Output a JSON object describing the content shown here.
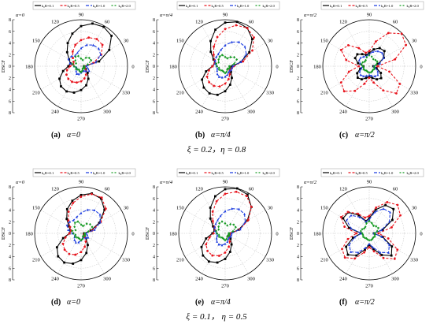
{
  "legend_labels": [
    "k₀R=0.1",
    "k₀R=0.5",
    "k₀R=1.0",
    "k₀R=2.0"
  ],
  "series_colors": [
    "#000000",
    "#e8141d",
    "#1f3fe0",
    "#159a22"
  ],
  "angle_labels": [
    "0",
    "30",
    "60",
    "90",
    "120",
    "150",
    "180",
    "210",
    "240",
    "270",
    "300",
    "330"
  ],
  "radial_tick_labels": [
    "0",
    "2",
    "4",
    "6",
    "8"
  ],
  "axis_label": "DSCF",
  "row_captions": [
    "ξ = 0.2，η = 0.8",
    "ξ = 0.1，  η = 0.5"
  ],
  "chart_data": [
    {
      "type": "polar-line",
      "panel": "(a)",
      "caption": "α=0",
      "alpha_label": "α=0",
      "theta_unit": "deg",
      "rlim": [
        0,
        8
      ],
      "legend": "top",
      "theta": [
        0,
        15,
        30,
        45,
        60,
        75,
        90,
        105,
        120,
        135,
        150,
        165,
        180,
        195,
        210,
        225,
        240,
        255,
        270,
        285,
        300,
        315,
        330,
        345
      ],
      "series": [
        {
          "name": "k₀R=0.1",
          "r": [
            0.5,
            3.2,
            5.6,
            7.4,
            7.8,
            7.6,
            6.9,
            5.8,
            4.6,
            3.4,
            2.4,
            1.9,
            2.2,
            3.2,
            4.3,
            4.9,
            5.0,
            4.7,
            4.1,
            3.4,
            2.5,
            1.6,
            0.9,
            0.5
          ]
        },
        {
          "name": "k₀R=0.5",
          "r": [
            0.6,
            2.2,
            4.0,
            5.2,
            5.4,
            5.1,
            4.5,
            3.8,
            2.9,
            2.0,
            1.5,
            1.4,
            1.9,
            2.5,
            2.9,
            3.1,
            3.1,
            2.9,
            2.6,
            2.2,
            1.7,
            1.2,
            0.8,
            0.6
          ]
        },
        {
          "name": "k₀R=1.0",
          "r": [
            0.9,
            2.6,
            3.9,
            4.3,
            4.2,
            3.8,
            3.1,
            2.4,
            2.1,
            2.4,
            2.5,
            2.0,
            1.2,
            0.8,
            0.9,
            1.2,
            1.5,
            1.4,
            1.1,
            0.9,
            0.9,
            1.2,
            1.6,
            1.2
          ]
        },
        {
          "name": "k₀R=2.0",
          "r": [
            0.5,
            1.2,
            2.0,
            2.0,
            1.7,
            1.1,
            1.3,
            1.8,
            1.9,
            1.4,
            1.0,
            1.5,
            1.2,
            0.9,
            1.0,
            0.8,
            0.7,
            0.9,
            1.0,
            0.8,
            0.5,
            0.5,
            0.7,
            0.6
          ]
        }
      ]
    },
    {
      "type": "polar-line",
      "panel": "(b)",
      "caption": "α=π/4",
      "alpha_label": "α=π/4",
      "theta_unit": "deg",
      "rlim": [
        0,
        8
      ],
      "legend": "top",
      "theta": [
        0,
        15,
        30,
        45,
        60,
        75,
        90,
        105,
        120,
        135,
        150,
        165,
        180,
        195,
        210,
        225,
        240,
        255,
        270,
        285,
        300,
        315,
        330,
        345
      ],
      "series": [
        {
          "name": "k₀R=0.1",
          "r": [
            1.2,
            2.8,
            4.8,
            6.6,
            7.6,
            7.9,
            7.5,
            6.5,
            5.0,
            3.5,
            2.3,
            1.8,
            2.2,
            3.4,
            4.6,
            5.2,
            5.4,
            5.1,
            4.3,
            3.3,
            2.3,
            1.4,
            0.9,
            0.9
          ]
        },
        {
          "name": "k₀R=0.5",
          "r": [
            1.5,
            3.2,
            5.4,
            7.0,
            7.6,
            7.3,
            6.4,
            5.2,
            3.9,
            2.8,
            2.1,
            1.9,
            2.2,
            2.9,
            3.6,
            3.9,
            3.9,
            3.6,
            3.0,
            2.3,
            1.6,
            1.1,
            1.0,
            1.2
          ]
        },
        {
          "name": "k₀R=1.0",
          "r": [
            1.3,
            2.8,
            4.2,
            4.8,
            4.8,
            4.3,
            3.6,
            2.9,
            2.4,
            2.2,
            2.0,
            1.8,
            1.5,
            1.4,
            1.6,
            1.9,
            2.1,
            2.0,
            1.8,
            1.5,
            1.2,
            1.1,
            1.2,
            1.2
          ]
        },
        {
          "name": "k₀R=2.0",
          "r": [
            0.7,
            1.6,
            2.3,
            2.2,
            1.8,
            1.4,
            1.6,
            2.0,
            1.9,
            1.6,
            1.3,
            1.6,
            1.4,
            1.1,
            1.2,
            1.0,
            0.9,
            1.0,
            1.2,
            1.0,
            0.7,
            0.6,
            0.8,
            0.8
          ]
        }
      ]
    },
    {
      "type": "polar-line",
      "panel": "(c)",
      "caption": "α=π/2",
      "alpha_label": "α=π/2",
      "theta_unit": "deg",
      "rlim": [
        0,
        8
      ],
      "legend": "top",
      "theta": [
        0,
        15,
        30,
        45,
        60,
        75,
        90,
        105,
        120,
        135,
        150,
        165,
        180,
        195,
        210,
        225,
        240,
        255,
        270,
        285,
        300,
        315,
        330,
        345
      ],
      "series": [
        {
          "name": "k₀R=0.1",
          "r": [
            0.7,
            1.6,
            2.9,
            3.7,
            3.6,
            3.0,
            2.3,
            2.0,
            2.4,
            2.9,
            2.8,
            2.0,
            1.0,
            1.6,
            2.4,
            2.8,
            2.6,
            2.1,
            1.8,
            2.1,
            2.6,
            2.9,
            2.3,
            1.3
          ]
        },
        {
          "name": "k₀R=0.5",
          "r": [
            1.4,
            4.6,
            7.3,
            7.9,
            6.6,
            4.4,
            2.6,
            2.4,
            3.6,
            5.1,
            5.6,
            4.1,
            1.8,
            3.6,
            5.6,
            6.1,
            4.9,
            3.1,
            2.0,
            2.9,
            4.8,
            6.6,
            6.1,
            3.6
          ]
        },
        {
          "name": "k₀R=1.0",
          "r": [
            0.8,
            1.9,
            2.9,
            3.2,
            3.0,
            2.6,
            2.1,
            1.8,
            1.9,
            2.1,
            2.0,
            1.6,
            1.1,
            1.4,
            1.9,
            2.1,
            2.0,
            1.7,
            1.5,
            1.7,
            2.0,
            2.1,
            1.7,
            1.1
          ]
        },
        {
          "name": "k₀R=2.0",
          "r": [
            0.9,
            1.3,
            1.6,
            1.5,
            1.4,
            1.7,
            1.9,
            1.6,
            1.2,
            1.1,
            1.3,
            1.4,
            1.1,
            1.0,
            1.1,
            1.0,
            0.9,
            1.0,
            1.1,
            1.1,
            1.0,
            0.9,
            1.0,
            0.9
          ]
        }
      ]
    },
    {
      "type": "polar-line",
      "panel": "(d)",
      "caption": "α=0",
      "alpha_label": "α=0",
      "theta_unit": "deg",
      "rlim": [
        0,
        8
      ],
      "legend": "top",
      "theta": [
        0,
        15,
        30,
        45,
        60,
        75,
        90,
        105,
        120,
        135,
        150,
        165,
        180,
        195,
        210,
        225,
        240,
        255,
        270,
        285,
        300,
        315,
        330,
        345
      ],
      "series": [
        {
          "name": "k₀R=0.1",
          "r": [
            0.5,
            1.7,
            3.6,
            5.7,
            6.9,
            7.1,
            6.6,
            5.8,
            4.8,
            3.5,
            2.4,
            1.9,
            2.0,
            3.2,
            4.8,
            5.6,
            5.8,
            5.4,
            4.6,
            3.5,
            2.3,
            1.2,
            0.6,
            0.5
          ]
        },
        {
          "name": "k₀R=0.5",
          "r": [
            0.6,
            2.0,
            3.9,
            6.0,
            7.1,
            7.0,
            6.3,
            5.4,
            4.3,
            3.1,
            2.2,
            1.8,
            2.0,
            2.8,
            3.6,
            4.0,
            4.1,
            3.8,
            3.2,
            2.4,
            1.6,
            0.9,
            0.6,
            0.6
          ]
        },
        {
          "name": "k₀R=1.0",
          "r": [
            0.8,
            2.4,
            3.8,
            4.6,
            4.6,
            4.2,
            3.5,
            2.9,
            2.6,
            2.8,
            2.8,
            2.3,
            1.5,
            1.1,
            1.3,
            1.6,
            1.8,
            1.6,
            1.2,
            0.9,
            0.8,
            1.1,
            1.4,
            1.1
          ]
        },
        {
          "name": "k₀R=2.0",
          "r": [
            0.6,
            1.3,
            2.2,
            2.2,
            1.9,
            1.3,
            1.5,
            2.1,
            2.1,
            1.6,
            1.1,
            1.6,
            1.3,
            1.0,
            1.2,
            1.0,
            0.9,
            1.0,
            1.2,
            1.0,
            0.6,
            0.6,
            0.8,
            0.7
          ]
        }
      ]
    },
    {
      "type": "polar-line",
      "panel": "(e)",
      "caption": "α=π/4",
      "alpha_label": "α=π/4",
      "theta_unit": "deg",
      "rlim": [
        0,
        8
      ],
      "legend": "top",
      "theta": [
        0,
        15,
        30,
        45,
        60,
        75,
        90,
        105,
        120,
        135,
        150,
        165,
        180,
        195,
        210,
        225,
        240,
        255,
        270,
        285,
        300,
        315,
        330,
        345
      ],
      "series": [
        {
          "name": "k₀R=0.1",
          "r": [
            0.9,
            2.4,
            4.4,
            6.4,
            7.7,
            8.0,
            7.6,
            6.6,
            5.1,
            3.6,
            2.4,
            1.9,
            2.2,
            3.4,
            4.7,
            5.4,
            5.6,
            5.2,
            4.4,
            3.3,
            2.2,
            1.3,
            0.8,
            0.7
          ]
        },
        {
          "name": "k₀R=0.5",
          "r": [
            1.0,
            2.6,
            4.6,
            6.4,
            7.4,
            7.4,
            6.8,
            5.7,
            4.3,
            3.0,
            2.1,
            1.8,
            2.0,
            2.8,
            3.8,
            4.3,
            4.4,
            4.0,
            3.3,
            2.4,
            1.6,
            1.0,
            0.8,
            0.8
          ]
        },
        {
          "name": "k₀R=1.0",
          "r": [
            1.1,
            2.7,
            4.0,
            4.7,
            4.8,
            4.4,
            3.8,
            3.1,
            2.6,
            2.3,
            2.1,
            1.8,
            1.5,
            1.4,
            1.7,
            2.0,
            2.2,
            2.1,
            1.8,
            1.5,
            1.1,
            1.0,
            1.1,
            1.1
          ]
        },
        {
          "name": "k₀R=2.0",
          "r": [
            0.6,
            1.4,
            2.1,
            2.1,
            1.8,
            1.4,
            1.7,
            2.1,
            2.0,
            1.6,
            1.3,
            1.6,
            1.4,
            1.1,
            1.2,
            1.0,
            0.9,
            1.0,
            1.2,
            1.0,
            0.7,
            0.6,
            0.8,
            0.7
          ]
        }
      ]
    },
    {
      "type": "polar-line",
      "panel": "(f)",
      "caption": "α=π/2",
      "alpha_label": "α=π/2",
      "theta_unit": "deg",
      "rlim": [
        0,
        8
      ],
      "legend": "top",
      "theta": [
        0,
        15,
        30,
        45,
        60,
        75,
        90,
        105,
        120,
        135,
        150,
        165,
        180,
        195,
        210,
        225,
        240,
        255,
        270,
        285,
        300,
        315,
        330,
        345
      ],
      "series": [
        {
          "name": "k₀R=0.1",
          "r": [
            0.8,
            2.4,
            4.6,
            5.9,
            5.6,
            4.2,
            2.6,
            2.2,
            3.6,
            5.1,
            5.2,
            3.6,
            1.4,
            2.9,
            4.6,
            5.2,
            4.4,
            2.9,
            2.0,
            2.8,
            4.3,
            5.4,
            4.5,
            2.4
          ]
        },
        {
          "name": "k₀R=0.5",
          "r": [
            1.6,
            4.0,
            6.2,
            6.9,
            6.2,
            4.6,
            3.0,
            2.8,
            3.9,
            5.2,
            5.6,
            4.4,
            2.2,
            3.8,
            5.4,
            5.9,
            5.0,
            3.4,
            2.4,
            3.2,
            4.9,
            6.2,
            5.6,
            3.4
          ]
        },
        {
          "name": "k₀R=1.0",
          "r": [
            0.8,
            2.2,
            4.0,
            5.1,
            4.9,
            3.8,
            2.4,
            2.1,
            3.2,
            4.4,
            4.5,
            3.2,
            1.3,
            2.6,
            4.0,
            4.5,
            3.8,
            2.6,
            1.8,
            2.5,
            3.8,
            4.7,
            4.0,
            2.2
          ]
        },
        {
          "name": "k₀R=2.0",
          "r": [
            0.9,
            1.4,
            1.8,
            1.7,
            1.5,
            1.8,
            2.1,
            1.8,
            1.3,
            1.2,
            1.4,
            1.5,
            1.2,
            1.1,
            1.2,
            1.1,
            1.0,
            1.1,
            1.2,
            1.2,
            1.1,
            1.0,
            1.1,
            1.0
          ]
        }
      ]
    }
  ]
}
